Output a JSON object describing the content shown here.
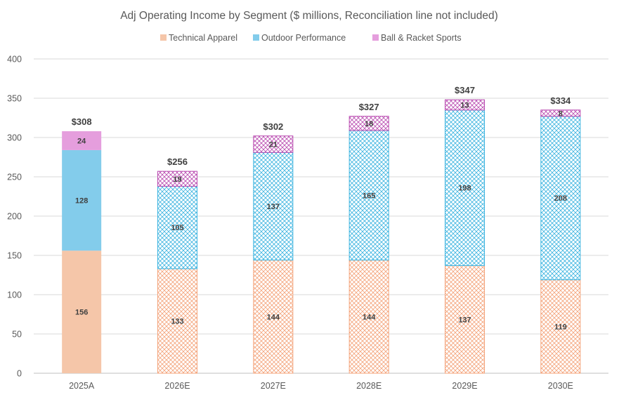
{
  "chart_data": {
    "type": "bar",
    "stacked": true,
    "title": "Adj Operating Income by Segment ($ millions, Reconciliation line not included)",
    "xlabel": "",
    "ylabel": "",
    "ylim": [
      0,
      400
    ],
    "yticks": [
      0,
      50,
      100,
      150,
      200,
      250,
      300,
      350,
      400
    ],
    "grid": true,
    "legend_position": "top",
    "categories": [
      "2025A",
      "2026E",
      "2027E",
      "2028E",
      "2029E",
      "2030E"
    ],
    "series": [
      {
        "name": "Technical Apparel",
        "color": "#f5c6a9",
        "stroke": "#f4a37a",
        "values": [
          156,
          133,
          144,
          144,
          137,
          119
        ]
      },
      {
        "name": "Outdoor Performance",
        "color": "#83cceb",
        "stroke": "#3cb4e0",
        "values": [
          128,
          105,
          137,
          165,
          198,
          208
        ]
      },
      {
        "name": "Ball & Racket Sports",
        "color": "#e59edd",
        "stroke": "#b94ab0",
        "values": [
          24,
          19,
          21,
          18,
          13,
          8
        ]
      }
    ],
    "hatched_categories": [
      "2026E",
      "2027E",
      "2028E",
      "2029E",
      "2030E"
    ],
    "totals": [
      "$308",
      "$256",
      "$302",
      "$327",
      "$347",
      "$334"
    ]
  }
}
